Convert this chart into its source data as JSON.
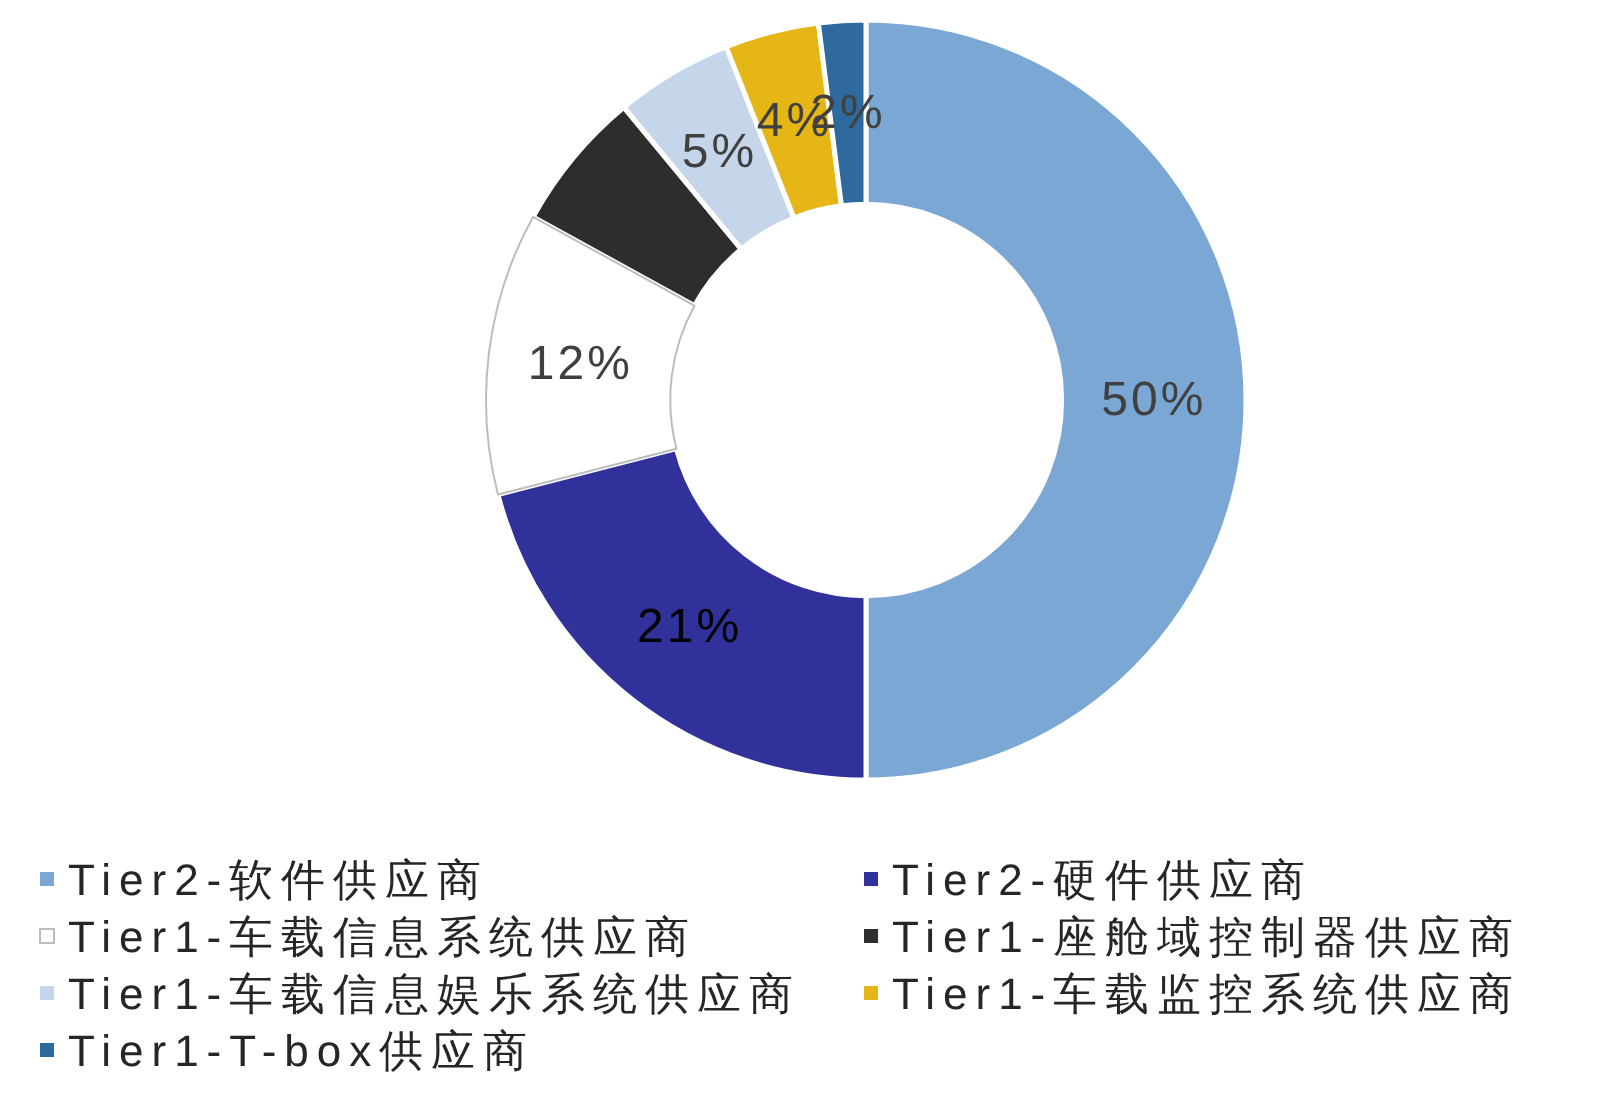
{
  "chart_data": {
    "type": "donut",
    "categories": [
      "Tier2-软件供应商",
      "Tier2-硬件供应商",
      "Tier1-车载信息系统供应商",
      "Tier1-座舱域控制器供应商",
      "Tier1-车载信息娱乐系统供应商",
      "Tier1-车载监控系统供应商",
      "Tier1-T-box供应商"
    ],
    "values": [
      50,
      21,
      12,
      6,
      5,
      4,
      2
    ],
    "colors": [
      "#7aa7d3",
      "#30319a",
      "#ffffff",
      "#2d2d2d",
      "#c5d6ea",
      "#e6b616",
      "#2e6a9e"
    ],
    "value_labels": [
      "50%",
      "21%",
      "12%",
      null,
      "5%",
      "4%",
      "2%"
    ],
    "legend": "bottom"
  }
}
